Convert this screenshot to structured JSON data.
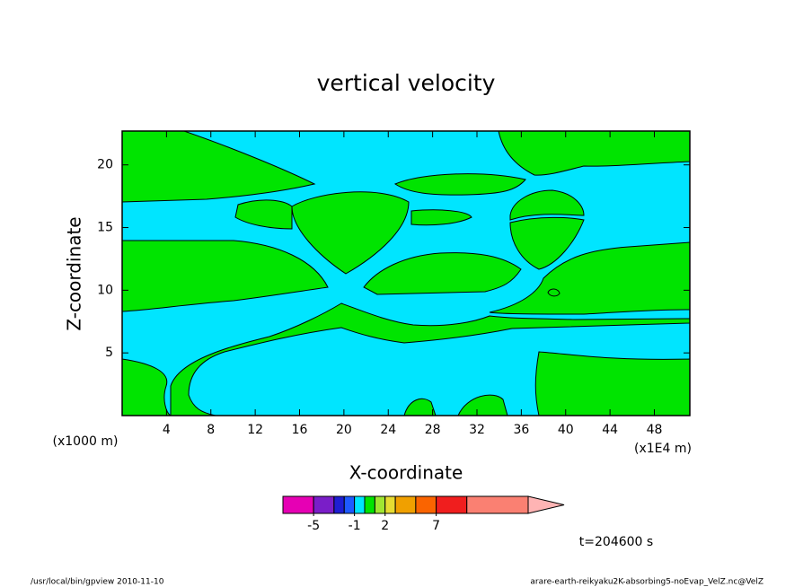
{
  "chart_data": {
    "type": "contour",
    "title": "vertical velocity",
    "xlabel": "X-coordinate",
    "ylabel": "Z-coordinate",
    "x_unit_note": "(x1E4 m)",
    "y_unit_note": "(x1000 m)",
    "time_label": "t=204600 s",
    "footer_left": "/usr/local/bin/gpview  2010-11-10",
    "footer_right": "arare-earth-reikyaku2K-absorbing5-noEvap_VelZ.nc@VelZ",
    "xlim": [
      0,
      51.2
    ],
    "xticks": [
      4,
      8,
      12,
      16,
      20,
      24,
      28,
      32,
      36,
      40,
      44,
      48
    ],
    "ylim": [
      0,
      22.7
    ],
    "yticks": [
      5,
      10,
      15,
      20
    ],
    "background_color": "#00e5ff",
    "fill_color": "#00e400",
    "colorbar": {
      "levels": [
        -8,
        -5,
        -3,
        -2,
        -1,
        0,
        1,
        2,
        3,
        5,
        7,
        10,
        16
      ],
      "colors": [
        "#e600b4",
        "#7a1ec8",
        "#1e1ed2",
        "#1e5aff",
        "#00e5ff",
        "#00e400",
        "#a0e632",
        "#e6dc32",
        "#f0a000",
        "#fa6400",
        "#f01e1e",
        "#fa8072"
      ],
      "extend_color": "#ffb4b4",
      "ticks": [
        -5,
        -1,
        2,
        7
      ]
    }
  }
}
